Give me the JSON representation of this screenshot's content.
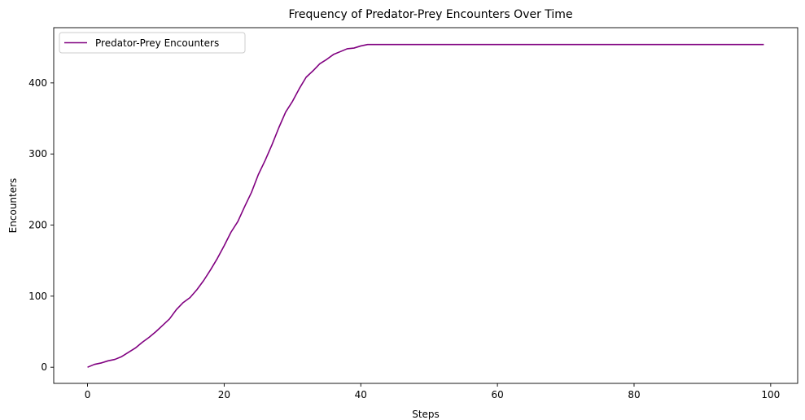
{
  "chart_data": {
    "type": "line",
    "title": "Frequency of Predator-Prey Encounters Over Time",
    "xlabel": "Steps",
    "ylabel": "Encounters",
    "xlim": [
      -4.95,
      103.95
    ],
    "ylim": [
      -22.7,
      477.7
    ],
    "xticks": [
      0,
      20,
      40,
      60,
      80,
      100
    ],
    "yticks": [
      0,
      100,
      200,
      300,
      400
    ],
    "grid": false,
    "legend": "upper-left",
    "series": [
      {
        "name": "Predator-Prey Encounters",
        "color": "#800080",
        "x": [
          0,
          1,
          2,
          3,
          4,
          5,
          6,
          7,
          8,
          9,
          10,
          11,
          12,
          13,
          14,
          15,
          16,
          17,
          18,
          19,
          20,
          21,
          22,
          23,
          24,
          25,
          26,
          27,
          28,
          29,
          30,
          31,
          32,
          33,
          34,
          35,
          36,
          37,
          38,
          39,
          40,
          41,
          42,
          43,
          44,
          45,
          46,
          47,
          48,
          49,
          50,
          51,
          52,
          53,
          54,
          55,
          56,
          57,
          58,
          59,
          60,
          61,
          62,
          63,
          64,
          65,
          66,
          67,
          68,
          69,
          70,
          71,
          72,
          73,
          74,
          75,
          76,
          77,
          78,
          79,
          80,
          81,
          82,
          83,
          84,
          85,
          86,
          87,
          88,
          89,
          90,
          91,
          92,
          93,
          94,
          95,
          96,
          97,
          98,
          99
        ],
        "values": [
          0,
          4,
          6,
          9,
          11,
          15,
          21,
          27,
          35,
          42,
          50,
          59,
          68,
          81,
          91,
          98,
          109,
          122,
          137,
          153,
          171,
          190,
          205,
          226,
          246,
          271,
          291,
          313,
          337,
          359,
          374,
          392,
          408,
          417,
          427,
          433,
          440,
          444,
          448,
          449,
          452,
          454,
          454,
          454,
          454,
          454,
          454,
          454,
          454,
          454,
          454,
          454,
          454,
          454,
          454,
          454,
          454,
          454,
          454,
          454,
          454,
          454,
          454,
          454,
          454,
          454,
          454,
          454,
          454,
          454,
          454,
          454,
          454,
          454,
          454,
          454,
          454,
          454,
          454,
          454,
          454,
          454,
          454,
          454,
          454,
          454,
          454,
          454,
          454,
          454,
          454,
          454,
          454,
          454,
          454,
          454,
          454,
          454,
          454,
          454
        ]
      }
    ]
  }
}
